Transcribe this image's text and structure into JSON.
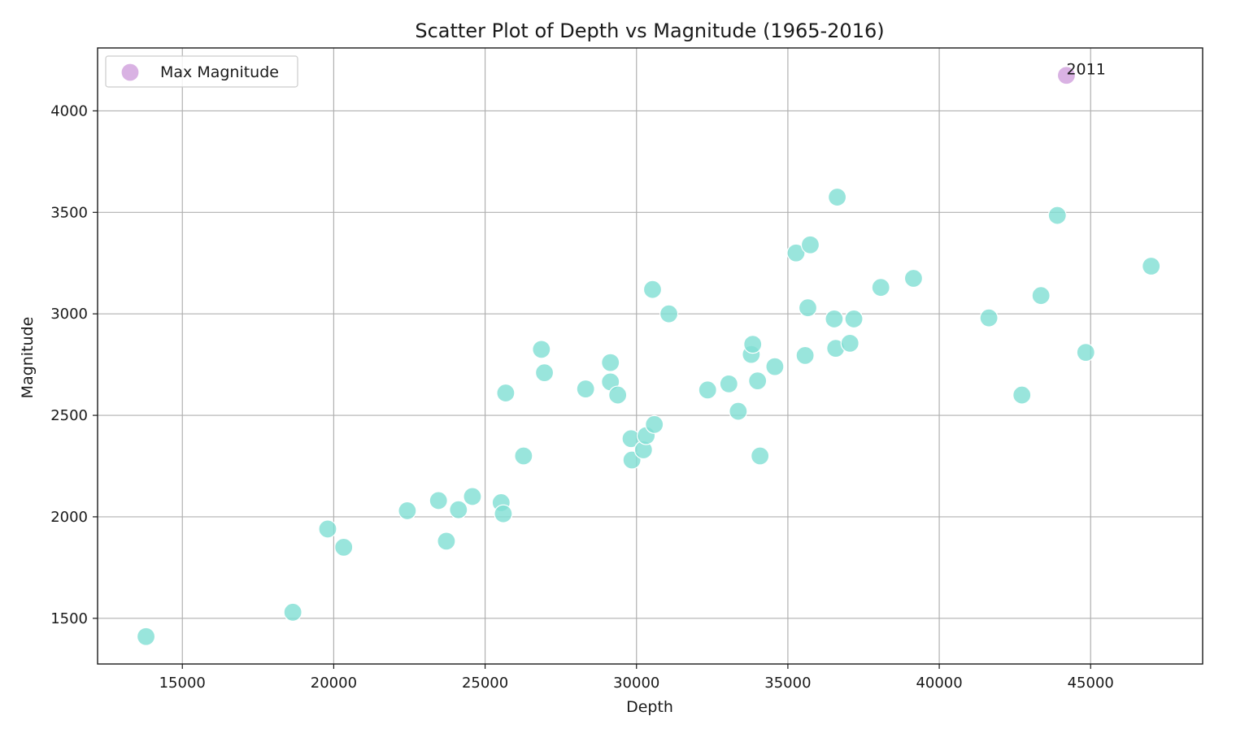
{
  "chart_data": {
    "type": "scatter",
    "title": "Scatter Plot of Depth vs Magnitude (1965-2016)",
    "xlabel": "Depth",
    "ylabel": "Magnitude",
    "xlim": [
      12200,
      48700
    ],
    "ylim": [
      1275,
      4310
    ],
    "xticks": [
      15000,
      20000,
      25000,
      30000,
      35000,
      40000,
      45000
    ],
    "yticks": [
      1500,
      2000,
      2500,
      3000,
      3500,
      4000
    ],
    "grid": true,
    "legend": {
      "placement": "top-left",
      "entries": [
        "Max Magnitude"
      ]
    },
    "series": [
      {
        "color": "#7fded3",
        "points": [
          [
            13800,
            1410
          ],
          [
            18650,
            1530
          ],
          [
            19800,
            1940
          ],
          [
            20330,
            1850
          ],
          [
            22430,
            2030
          ],
          [
            23460,
            2080
          ],
          [
            23720,
            1880
          ],
          [
            24120,
            2035
          ],
          [
            24580,
            2100
          ],
          [
            25530,
            2070
          ],
          [
            25600,
            2015
          ],
          [
            25680,
            2610
          ],
          [
            26270,
            2300
          ],
          [
            26860,
            2825
          ],
          [
            26960,
            2710
          ],
          [
            28320,
            2630
          ],
          [
            29140,
            2760
          ],
          [
            29140,
            2665
          ],
          [
            29380,
            2600
          ],
          [
            29820,
            2385
          ],
          [
            29850,
            2280
          ],
          [
            30230,
            2330
          ],
          [
            30320,
            2400
          ],
          [
            30530,
            3120
          ],
          [
            30590,
            2455
          ],
          [
            31070,
            3000
          ],
          [
            32350,
            2625
          ],
          [
            33050,
            2655
          ],
          [
            33360,
            2520
          ],
          [
            33790,
            2800
          ],
          [
            33840,
            2850
          ],
          [
            34000,
            2670
          ],
          [
            34080,
            2300
          ],
          [
            34570,
            2740
          ],
          [
            35270,
            3300
          ],
          [
            35570,
            2795
          ],
          [
            35660,
            3030
          ],
          [
            35740,
            3340
          ],
          [
            36530,
            2975
          ],
          [
            36580,
            2830
          ],
          [
            36630,
            3575
          ],
          [
            37050,
            2855
          ],
          [
            37180,
            2975
          ],
          [
            38070,
            3130
          ],
          [
            39150,
            3175
          ],
          [
            41640,
            2980
          ],
          [
            42730,
            2600
          ],
          [
            43360,
            3090
          ],
          [
            43900,
            3485
          ],
          [
            44840,
            2810
          ],
          [
            47000,
            3235
          ]
        ]
      },
      {
        "name": "Max Magnitude",
        "color": "#cf9fdc",
        "points": [
          [
            44200,
            4175
          ]
        ],
        "labels": [
          "2011"
        ]
      }
    ]
  }
}
